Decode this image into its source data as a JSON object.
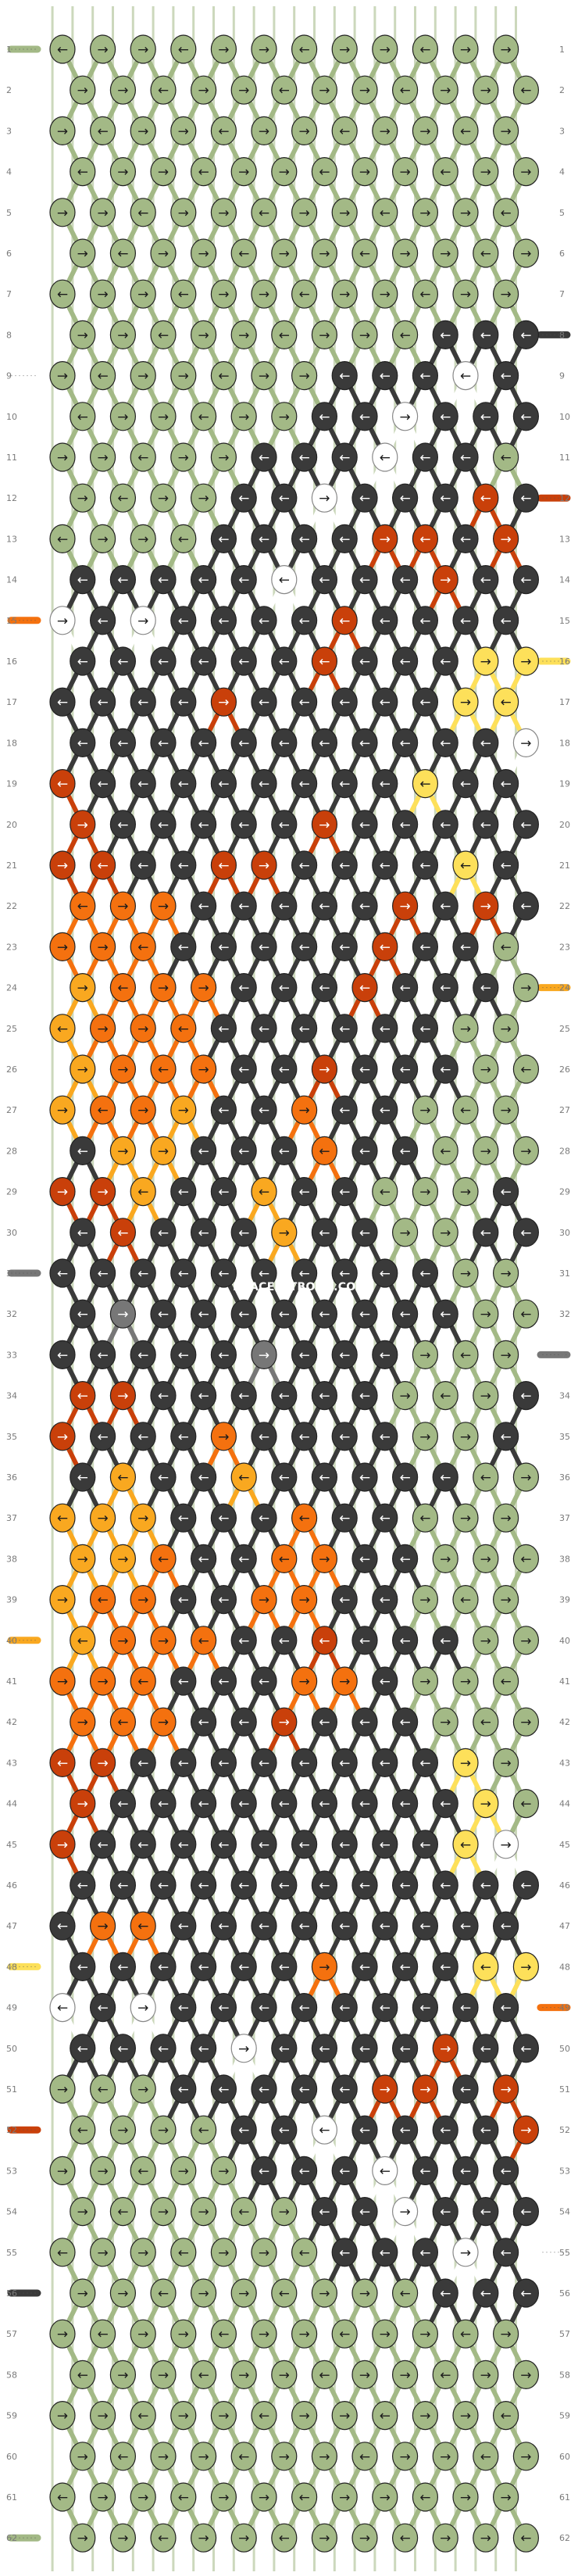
{
  "site": {
    "watermark": "BRACELETBOOK.COM"
  },
  "pattern": {
    "rows_count": 62,
    "knots_per_row": 12,
    "colors": {
      "G": "#a3b986",
      "K": "#3a3a3a",
      "O": "#f4710f",
      "R": "#c9400a",
      "Y": "#f9a820",
      "L": "#fde05a",
      "W": "#ffffff",
      "S": "#777777"
    },
    "string_colors": [
      "G",
      "G",
      "G",
      "G",
      "G",
      "G",
      "G",
      "G",
      "G",
      "G",
      "G",
      "G",
      "G",
      "G",
      "G",
      "G",
      "G",
      "G",
      "G",
      "G",
      "G",
      "G",
      "G",
      "G"
    ],
    "rows": [
      "GGGGGGGGGGGG",
      "GGGGGGGGGGGG",
      "GGGGGGGGGGGG",
      "GGGGGGGGGGGG",
      "GGGGGGGGGGGG",
      "GGGGGGGGGGGG",
      "GGGGGGGGGGGG",
      "GGGGGGGGGKKK",
      "GGGGGGGKKKWK",
      "GGGGGGKKWKKK",
      "GGGGGKKKWKKG",
      "GGGGKKWKKKRK",
      "GGGGKKKKRRKR",
      "KKKKKWKKKRKK",
      "WKWKKKKRKKKK",
      "KKKKKKRKKKLL",
      "KKKKRKKKKKLL",
      "KKKKKKKKKKKW",
      "RKKKKKKKKLKK",
      "RKKKKKRKKKKK",
      "RRKKRRKKKKLK",
      "OOOKKKKKRKRK",
      "OOOKKKKKRKKG",
      "YOOOKKKRKKKG",
      "YOOOKKKKKKGG",
      "YOOOKKRKKKGG",
      "YOOYKKOKKGGG",
      "KYYKKKOKKGGG",
      "RRYKKYKKGGGK",
      "KRKKKYKKGGKK",
      "KKKKKKKKKKGG",
      "KSKKKKKKKKGG",
      "KKKKKSKKKGGG",
      "RRKKKKKKGGGK",
      "RKKKOKKKKGGK",
      "KYKKYKKKKKGG",
      "YYYKKKOKKGGG",
      "YYOKKOOKKGGG",
      "YOOKKOOKKGGG",
      "YOOOKKRKKKGG",
      "OOOKKKOOKGGG",
      "OOOKKRKKKGGG",
      "RRKKKKKKKKLG",
      "RKKKKKKKKKLG",
      "RKKKKKKKKKLW",
      "KKKKKKKKKKKK",
      "KOOKKKKKKKKK",
      "KKKKKKOKKKLL",
      "WKWKKKKKKKKK",
      "KKKKWKKKKRKK",
      "GGGKKKKKRRKR",
      "GGGGKKWKKKKR",
      "GGGGGKKKWKKK",
      "GGGGGGKKWKKK",
      "GGGGGGGKKKWK",
      "GGGGGGGGGKKK",
      "GGGGGGGGGGGG",
      "GGGGGGGGGGGG",
      "GGGGGGGGGGGG",
      "GGGGGGGGGGGG",
      "GGGGGGGGGGGG",
      "GGGGGGGGGGGG"
    ],
    "left_tails": {
      "1": "G",
      "9": "W",
      "15": "O",
      "31": "S",
      "40": "Y",
      "48": "L",
      "52": "R",
      "56": "K",
      "62": "G"
    },
    "right_tails": {
      "8": "K",
      "12": "R",
      "16": "L",
      "24": "Y",
      "33": "S",
      "49": "O",
      "55": "W"
    }
  }
}
